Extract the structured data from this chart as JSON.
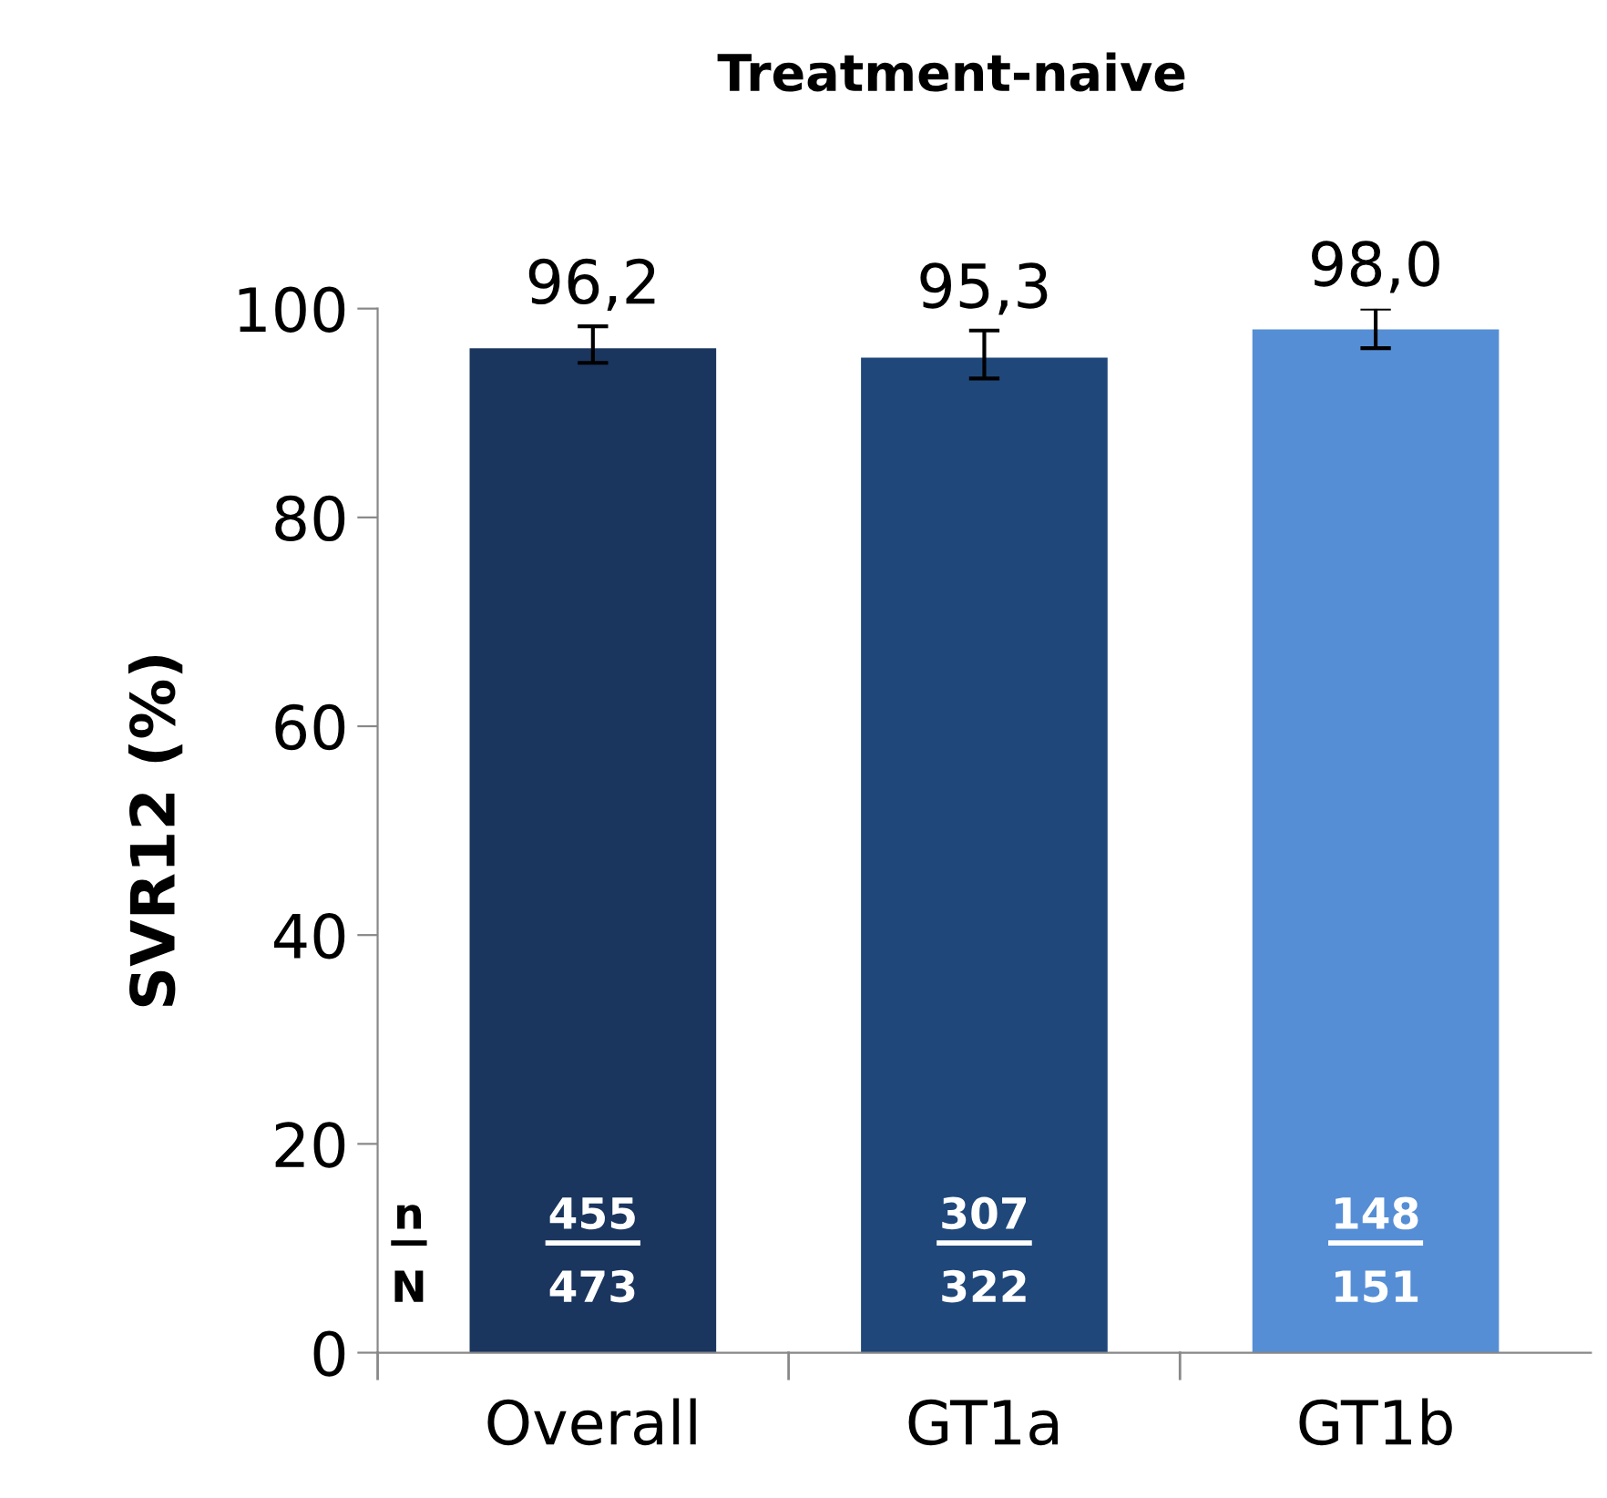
{
  "chart_data": {
    "type": "bar",
    "title": "Treatment-naive",
    "ylabel": "SVR12 (%)",
    "categories": [
      "Overall",
      "GT1a",
      "GT1b"
    ],
    "values": [
      96.2,
      95.3,
      98.0
    ],
    "colors": [
      "#1a355e",
      "#1f477a",
      "#558ed5"
    ],
    "value_labels": [
      "96,2",
      "95,3",
      "98,0"
    ],
    "errors": [
      [
        94.8,
        98.3
      ],
      [
        93.3,
        97.9
      ],
      [
        96.2,
        100
      ]
    ],
    "ylim": [
      0,
      100
    ],
    "yticks": [
      0,
      20,
      40,
      60,
      80,
      100
    ],
    "grid": false,
    "annotations": [
      "n",
      "N",
      "455",
      "473",
      "307",
      "322",
      "148",
      "151"
    ]
  }
}
